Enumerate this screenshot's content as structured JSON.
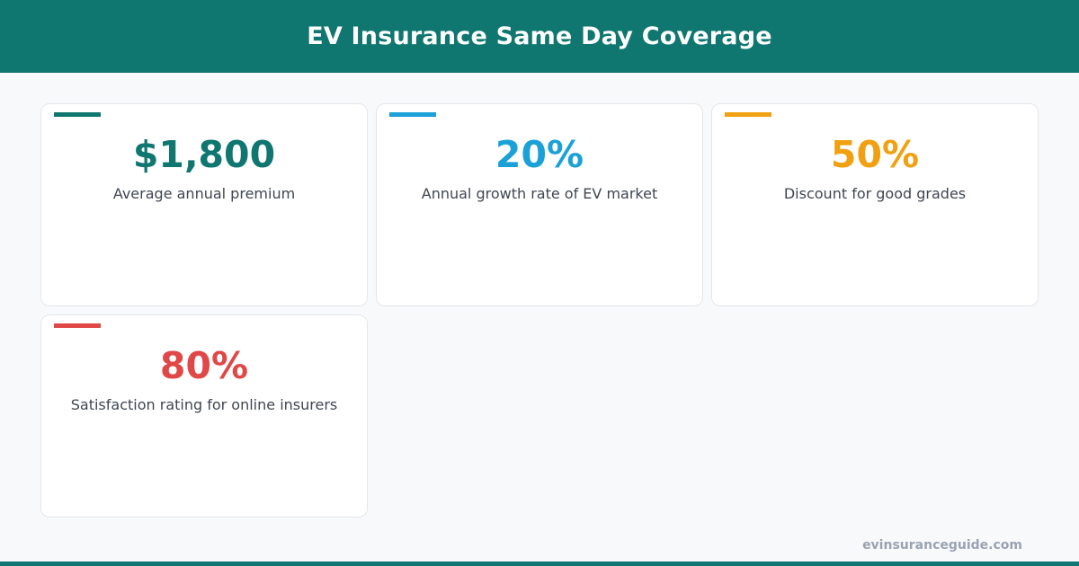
{
  "header": {
    "title": "EV Insurance Same Day Coverage",
    "background": "#0f7670"
  },
  "stats": [
    {
      "value": "$1,800",
      "label": "Average annual premium",
      "color": "#0f7670"
    },
    {
      "value": "20%",
      "label": "Annual growth rate of EV market",
      "color": "#1ba1d8"
    },
    {
      "value": "50%",
      "label": "Discount for good grades",
      "color": "#f0a010"
    },
    {
      "value": "80%",
      "label": "Satisfaction rating for online insurers",
      "color": "#e04848"
    }
  ],
  "footer": {
    "site": "evinsuranceguide.com"
  }
}
